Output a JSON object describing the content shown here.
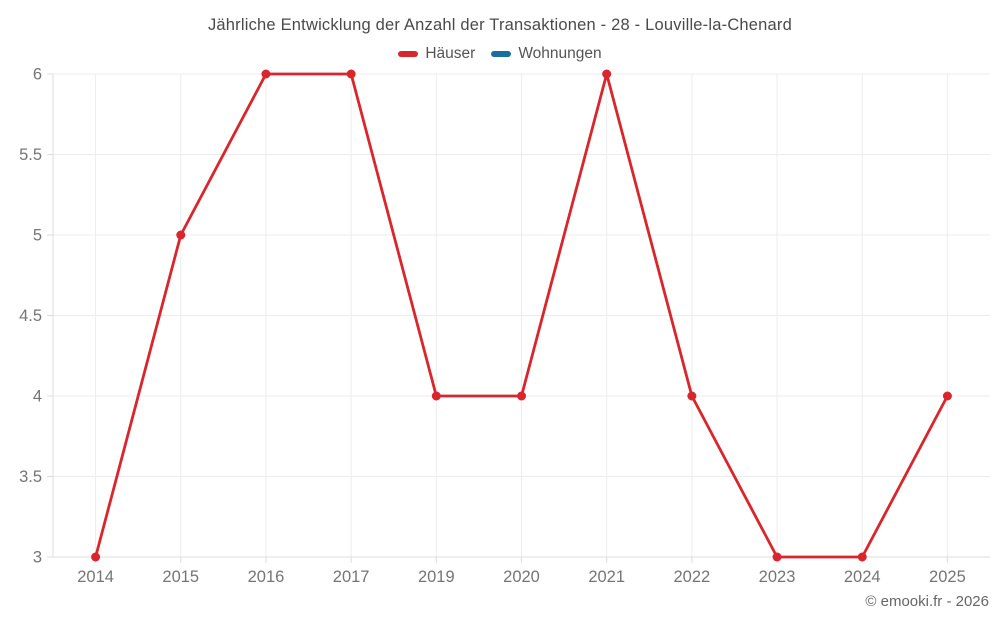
{
  "chart_data": {
    "type": "line",
    "title": "Jährliche Entwicklung der Anzahl der Transaktionen - 28 - Louville-la-Chenard",
    "categories": [
      "2014",
      "2015",
      "2016",
      "2017",
      "2019",
      "2020",
      "2021",
      "2022",
      "2023",
      "2024",
      "2025"
    ],
    "series": [
      {
        "name": "Häuser",
        "color": "#d8262c",
        "values": [
          3,
          5,
          6,
          6,
          4,
          4,
          6,
          4,
          3,
          3,
          4
        ]
      },
      {
        "name": "Wohnungen",
        "color": "#1a6f9e",
        "values": []
      }
    ],
    "ylim": [
      3,
      6
    ],
    "y_ticks": [
      3,
      3.5,
      4,
      4.5,
      5,
      5.5,
      6
    ],
    "xlabel": "",
    "ylabel": "",
    "grid": true,
    "legend_position": "top"
  },
  "footer": "© emooki.fr - 2026",
  "colors": {
    "background": "#ffffff",
    "grid": "#ececec",
    "axis": "#dcdcdc",
    "tick_label": "#757575",
    "title_text": "#4a4a4a",
    "legend_text": "#555555",
    "footer_text": "#666666"
  }
}
